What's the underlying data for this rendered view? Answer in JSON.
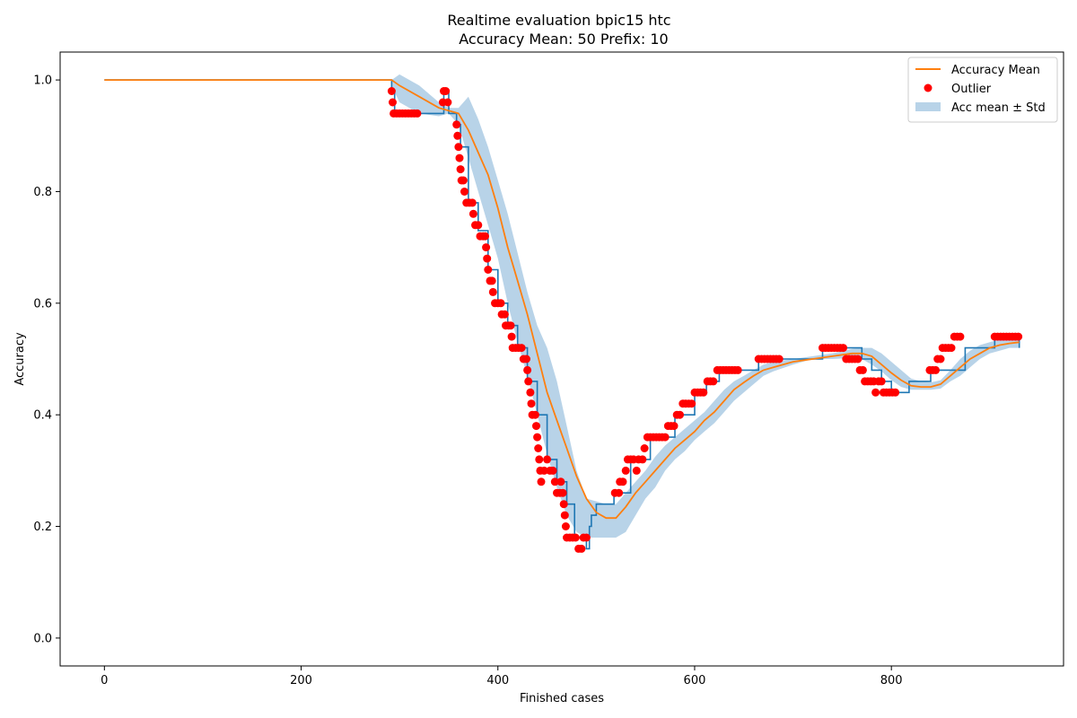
{
  "chart_data": {
    "type": "line",
    "title": "Realtime evaluation bpic15 htc",
    "subtitle": "Accuracy Mean: 50 Prefix: 10",
    "xlabel": "Finished cases",
    "ylabel": "Accuracy",
    "xlim": [
      -45,
      975
    ],
    "ylim": [
      -0.05,
      1.05
    ],
    "xticks": [
      0,
      200,
      400,
      600,
      800
    ],
    "yticks": [
      0.0,
      0.2,
      0.4,
      0.6,
      0.8,
      1.0
    ],
    "xtick_labels": [
      "0",
      "200",
      "400",
      "600",
      "800"
    ],
    "ytick_labels": [
      "0.0",
      "0.2",
      "0.4",
      "0.6",
      "0.8",
      "1.0"
    ],
    "grid": false,
    "legend_position": "top-right",
    "colors": {
      "accuracy": "#1f77b4",
      "mean": "#ff7f0e",
      "outlier": "#ff0000",
      "band": "#a6c8e2"
    },
    "series": [
      {
        "name": "",
        "kind": "step",
        "x": [
          0,
          292,
          292,
          295,
          295,
          345,
          345,
          350,
          350,
          358,
          358,
          362,
          370,
          380,
          390,
          400,
          410,
          420,
          430,
          440,
          450,
          460,
          470,
          478,
          480,
          490,
          493,
          495,
          500,
          500,
          518,
          518,
          535,
          545,
          555,
          565,
          580,
          600,
          612,
          612,
          625,
          625,
          650,
          665,
          665,
          690,
          690,
          730,
          730,
          760,
          770,
          780,
          790,
          800,
          818,
          818,
          840,
          840,
          875,
          875,
          905,
          905,
          930,
          930
        ],
        "y": [
          1.0,
          1.0,
          0.98,
          0.98,
          0.94,
          0.94,
          0.98,
          0.98,
          0.94,
          0.94,
          0.92,
          0.88,
          0.78,
          0.73,
          0.66,
          0.6,
          0.56,
          0.52,
          0.46,
          0.4,
          0.32,
          0.28,
          0.24,
          0.18,
          0.18,
          0.16,
          0.2,
          0.22,
          0.22,
          0.24,
          0.24,
          0.26,
          0.32,
          0.32,
          0.36,
          0.36,
          0.4,
          0.44,
          0.44,
          0.46,
          0.46,
          0.48,
          0.48,
          0.48,
          0.5,
          0.5,
          0.5,
          0.5,
          0.52,
          0.52,
          0.5,
          0.48,
          0.46,
          0.44,
          0.44,
          0.46,
          0.46,
          0.48,
          0.52,
          0.52,
          0.52,
          0.54,
          0.54,
          0.52
        ]
      },
      {
        "name": "Accuracy Mean",
        "kind": "line",
        "x": [
          0,
          292,
          300,
          320,
          340,
          360,
          370,
          380,
          390,
          400,
          410,
          420,
          430,
          440,
          450,
          460,
          470,
          480,
          490,
          500,
          510,
          520,
          530,
          540,
          550,
          560,
          570,
          580,
          590,
          600,
          610,
          620,
          630,
          640,
          650,
          660,
          670,
          680,
          700,
          720,
          740,
          760,
          770,
          780,
          790,
          800,
          810,
          820,
          830,
          840,
          850,
          860,
          870,
          880,
          890,
          900,
          910,
          920,
          930
        ],
        "y": [
          1.0,
          1.0,
          0.99,
          0.97,
          0.95,
          0.94,
          0.91,
          0.87,
          0.83,
          0.77,
          0.7,
          0.64,
          0.58,
          0.51,
          0.44,
          0.39,
          0.34,
          0.29,
          0.25,
          0.225,
          0.215,
          0.215,
          0.235,
          0.26,
          0.28,
          0.3,
          0.32,
          0.34,
          0.355,
          0.37,
          0.39,
          0.405,
          0.425,
          0.445,
          0.458,
          0.47,
          0.48,
          0.485,
          0.495,
          0.5,
          0.505,
          0.51,
          0.51,
          0.505,
          0.49,
          0.475,
          0.462,
          0.452,
          0.45,
          0.45,
          0.455,
          0.47,
          0.485,
          0.5,
          0.51,
          0.52,
          0.525,
          0.528,
          0.53
        ]
      },
      {
        "name": "Outlier",
        "kind": "scatter",
        "points": [
          [
            292,
            0.98
          ],
          [
            293,
            0.96
          ],
          [
            294,
            0.94
          ],
          [
            297,
            0.94
          ],
          [
            300,
            0.94
          ],
          [
            303,
            0.94
          ],
          [
            306,
            0.94
          ],
          [
            309,
            0.94
          ],
          [
            312,
            0.94
          ],
          [
            315,
            0.94
          ],
          [
            318,
            0.94
          ],
          [
            344,
            0.96
          ],
          [
            345,
            0.98
          ],
          [
            347,
            0.98
          ],
          [
            349,
            0.96
          ],
          [
            358,
            0.92
          ],
          [
            359,
            0.9
          ],
          [
            360,
            0.88
          ],
          [
            361,
            0.86
          ],
          [
            362,
            0.84
          ],
          [
            363,
            0.82
          ],
          [
            365,
            0.82
          ],
          [
            366,
            0.8
          ],
          [
            368,
            0.78
          ],
          [
            371,
            0.78
          ],
          [
            374,
            0.78
          ],
          [
            375,
            0.76
          ],
          [
            377,
            0.74
          ],
          [
            380,
            0.74
          ],
          [
            382,
            0.72
          ],
          [
            385,
            0.72
          ],
          [
            387,
            0.72
          ],
          [
            388,
            0.7
          ],
          [
            389,
            0.68
          ],
          [
            390,
            0.66
          ],
          [
            392,
            0.64
          ],
          [
            394,
            0.64
          ],
          [
            395,
            0.62
          ],
          [
            397,
            0.6
          ],
          [
            400,
            0.6
          ],
          [
            403,
            0.6
          ],
          [
            404,
            0.58
          ],
          [
            407,
            0.58
          ],
          [
            408,
            0.56
          ],
          [
            411,
            0.56
          ],
          [
            413,
            0.56
          ],
          [
            414,
            0.54
          ],
          [
            415,
            0.52
          ],
          [
            418,
            0.52
          ],
          [
            421,
            0.52
          ],
          [
            424,
            0.52
          ],
          [
            426,
            0.5
          ],
          [
            429,
            0.5
          ],
          [
            430,
            0.48
          ],
          [
            431,
            0.46
          ],
          [
            433,
            0.44
          ],
          [
            434,
            0.42
          ],
          [
            435,
            0.4
          ],
          [
            438,
            0.4
          ],
          [
            439,
            0.38
          ],
          [
            440,
            0.36
          ],
          [
            441,
            0.34
          ],
          [
            442,
            0.32
          ],
          [
            443,
            0.3
          ],
          [
            444,
            0.28
          ],
          [
            447,
            0.3
          ],
          [
            450,
            0.32
          ],
          [
            453,
            0.3
          ],
          [
            456,
            0.3
          ],
          [
            458,
            0.28
          ],
          [
            460,
            0.26
          ],
          [
            463,
            0.26
          ],
          [
            464,
            0.28
          ],
          [
            466,
            0.26
          ],
          [
            467,
            0.24
          ],
          [
            468,
            0.22
          ],
          [
            469,
            0.2
          ],
          [
            470,
            0.18
          ],
          [
            473,
            0.18
          ],
          [
            476,
            0.18
          ],
          [
            479,
            0.18
          ],
          [
            482,
            0.16
          ],
          [
            485,
            0.16
          ],
          [
            487,
            0.18
          ],
          [
            490,
            0.18
          ],
          [
            519,
            0.26
          ],
          [
            523,
            0.26
          ],
          [
            524,
            0.28
          ],
          [
            527,
            0.28
          ],
          [
            530,
            0.3
          ],
          [
            532,
            0.32
          ],
          [
            535,
            0.32
          ],
          [
            538,
            0.32
          ],
          [
            541,
            0.3
          ],
          [
            543,
            0.32
          ],
          [
            547,
            0.32
          ],
          [
            549,
            0.34
          ],
          [
            552,
            0.36
          ],
          [
            555,
            0.36
          ],
          [
            558,
            0.36
          ],
          [
            561,
            0.36
          ],
          [
            564,
            0.36
          ],
          [
            567,
            0.36
          ],
          [
            570,
            0.36
          ],
          [
            573,
            0.38
          ],
          [
            576,
            0.38
          ],
          [
            579,
            0.38
          ],
          [
            582,
            0.4
          ],
          [
            585,
            0.4
          ],
          [
            588,
            0.42
          ],
          [
            591,
            0.42
          ],
          [
            594,
            0.42
          ],
          [
            597,
            0.42
          ],
          [
            600,
            0.44
          ],
          [
            603,
            0.44
          ],
          [
            606,
            0.44
          ],
          [
            609,
            0.44
          ],
          [
            613,
            0.46
          ],
          [
            616,
            0.46
          ],
          [
            619,
            0.46
          ],
          [
            623,
            0.48
          ],
          [
            626,
            0.48
          ],
          [
            629,
            0.48
          ],
          [
            632,
            0.48
          ],
          [
            635,
            0.48
          ],
          [
            638,
            0.48
          ],
          [
            641,
            0.48
          ],
          [
            644,
            0.48
          ],
          [
            665,
            0.5
          ],
          [
            668,
            0.5
          ],
          [
            671,
            0.5
          ],
          [
            674,
            0.5
          ],
          [
            677,
            0.5
          ],
          [
            680,
            0.5
          ],
          [
            683,
            0.5
          ],
          [
            686,
            0.5
          ],
          [
            730,
            0.52
          ],
          [
            733,
            0.52
          ],
          [
            736,
            0.52
          ],
          [
            739,
            0.52
          ],
          [
            742,
            0.52
          ],
          [
            745,
            0.52
          ],
          [
            748,
            0.52
          ],
          [
            751,
            0.52
          ],
          [
            754,
            0.5
          ],
          [
            757,
            0.5
          ],
          [
            760,
            0.5
          ],
          [
            763,
            0.5
          ],
          [
            766,
            0.5
          ],
          [
            768,
            0.48
          ],
          [
            771,
            0.48
          ],
          [
            773,
            0.46
          ],
          [
            776,
            0.46
          ],
          [
            779,
            0.46
          ],
          [
            782,
            0.46
          ],
          [
            784,
            0.44
          ],
          [
            787,
            0.46
          ],
          [
            790,
            0.46
          ],
          [
            792,
            0.44
          ],
          [
            795,
            0.44
          ],
          [
            798,
            0.44
          ],
          [
            801,
            0.44
          ],
          [
            804,
            0.44
          ],
          [
            839,
            0.48
          ],
          [
            842,
            0.48
          ],
          [
            845,
            0.48
          ],
          [
            847,
            0.5
          ],
          [
            850,
            0.5
          ],
          [
            852,
            0.52
          ],
          [
            855,
            0.52
          ],
          [
            858,
            0.52
          ],
          [
            861,
            0.52
          ],
          [
            864,
            0.54
          ],
          [
            867,
            0.54
          ],
          [
            870,
            0.54
          ],
          [
            905,
            0.54
          ],
          [
            908,
            0.54
          ],
          [
            911,
            0.54
          ],
          [
            914,
            0.54
          ],
          [
            917,
            0.54
          ],
          [
            920,
            0.54
          ],
          [
            923,
            0.54
          ],
          [
            926,
            0.54
          ],
          [
            929,
            0.54
          ]
        ]
      },
      {
        "name": "Acc mean ± Std",
        "kind": "band",
        "x": [
          292,
          300,
          320,
          340,
          350,
          360,
          370,
          380,
          390,
          400,
          410,
          420,
          430,
          440,
          450,
          460,
          470,
          480,
          490,
          500,
          510,
          520,
          530,
          540,
          550,
          560,
          570,
          580,
          590,
          600,
          610,
          620,
          630,
          640,
          650,
          660,
          670,
          680,
          700,
          720,
          740,
          760,
          770,
          780,
          790,
          800,
          810,
          820,
          830,
          840,
          850,
          860,
          870,
          880,
          890,
          900,
          910,
          920,
          930
        ],
        "lower": [
          0.99,
          0.96,
          0.94,
          0.935,
          0.94,
          0.92,
          0.86,
          0.8,
          0.74,
          0.68,
          0.6,
          0.53,
          0.47,
          0.4,
          0.33,
          0.27,
          0.22,
          0.19,
          0.18,
          0.18,
          0.18,
          0.18,
          0.19,
          0.22,
          0.25,
          0.27,
          0.3,
          0.32,
          0.335,
          0.355,
          0.37,
          0.385,
          0.405,
          0.425,
          0.44,
          0.455,
          0.47,
          0.478,
          0.49,
          0.5,
          0.5,
          0.502,
          0.5,
          0.49,
          0.478,
          0.462,
          0.45,
          0.445,
          0.445,
          0.445,
          0.447,
          0.46,
          0.47,
          0.485,
          0.5,
          0.51,
          0.515,
          0.52,
          0.52
        ],
        "upper": [
          1.0,
          1.01,
          0.99,
          0.96,
          0.95,
          0.95,
          0.97,
          0.93,
          0.88,
          0.82,
          0.76,
          0.69,
          0.62,
          0.56,
          0.52,
          0.46,
          0.38,
          0.3,
          0.25,
          0.245,
          0.24,
          0.24,
          0.26,
          0.28,
          0.3,
          0.325,
          0.345,
          0.36,
          0.375,
          0.39,
          0.405,
          0.425,
          0.445,
          0.46,
          0.47,
          0.48,
          0.49,
          0.495,
          0.5,
          0.505,
          0.51,
          0.518,
          0.52,
          0.52,
          0.51,
          0.495,
          0.48,
          0.465,
          0.46,
          0.458,
          0.462,
          0.48,
          0.5,
          0.515,
          0.525,
          0.53,
          0.535,
          0.535,
          0.535
        ]
      }
    ]
  }
}
